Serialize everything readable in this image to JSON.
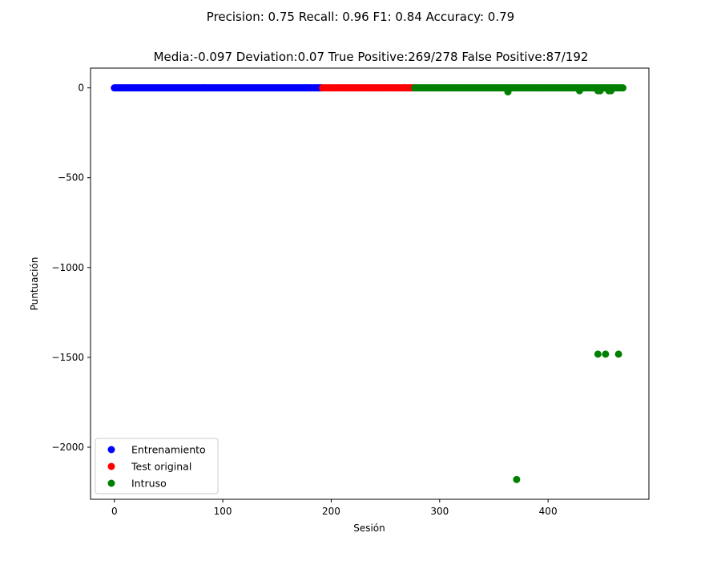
{
  "chart_data": {
    "type": "scatter",
    "suptitle": "Precision: 0.75 Recall: 0.96 F1: 0.84 Accuracy: 0.79",
    "title": "Media:-0.097 Deviation:0.07 True Positive:269/278 False Positive:87/192",
    "xlabel": "Sesión",
    "ylabel": "Puntuación",
    "xlim": [
      -22,
      493
    ],
    "ylim": [
      -2290,
      110
    ],
    "xticks": [
      0,
      100,
      200,
      300,
      400
    ],
    "yticks": [
      0,
      -500,
      -1000,
      -1500,
      -2000
    ],
    "xtick_labels": [
      "0",
      "100",
      "200",
      "300",
      "400"
    ],
    "ytick_labels": [
      "0",
      "−500",
      "−1000",
      "−1500",
      "−2000"
    ],
    "grid": false,
    "legend_position": "lower-left",
    "series": [
      {
        "name": "Entrenamiento",
        "color": "#0000ff",
        "range": {
          "start": 0,
          "end": 191,
          "y": 0
        },
        "points": []
      },
      {
        "name": "Test original",
        "color": "#ff0000",
        "range": {
          "start": 192,
          "end": 276,
          "y": 0
        },
        "points": []
      },
      {
        "name": "Intruso",
        "color": "#008000",
        "range": {
          "start": 277,
          "end": 469,
          "y": 0
        },
        "points": [
          {
            "x": 363,
            "y": -22
          },
          {
            "x": 429,
            "y": -16
          },
          {
            "x": 446,
            "y": -16
          },
          {
            "x": 448,
            "y": -16
          },
          {
            "x": 456,
            "y": -16
          },
          {
            "x": 458,
            "y": -16
          },
          {
            "x": 371,
            "y": -2180
          },
          {
            "x": 446,
            "y": -1482
          },
          {
            "x": 453,
            "y": -1482
          },
          {
            "x": 465,
            "y": -1482
          }
        ]
      }
    ]
  }
}
